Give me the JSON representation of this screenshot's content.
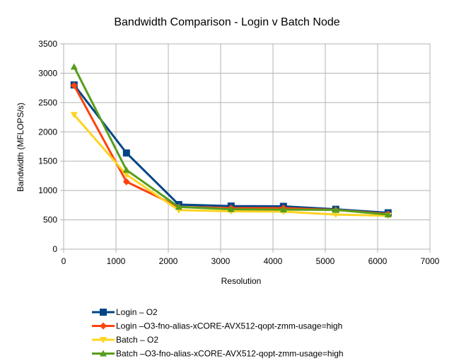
{
  "chart_data": {
    "type": "line",
    "title": "Bandwidth Comparison - Login v Batch Node",
    "xlabel": "Resolution",
    "ylabel": "Bandwidth (MFLOPS/s)",
    "xlim": [
      0,
      7000
    ],
    "ylim": [
      0,
      3500
    ],
    "xticks": [
      0,
      1000,
      2000,
      3000,
      4000,
      5000,
      6000,
      7000
    ],
    "yticks": [
      0,
      500,
      1000,
      1500,
      2000,
      2500,
      3000,
      3500
    ],
    "grid": true,
    "legend_position": "bottom",
    "series": [
      {
        "name": "Login – O2",
        "color": "#004586",
        "marker": "square",
        "x": [
          200,
          1200,
          2200,
          3200,
          4200,
          5200,
          6200
        ],
        "y": [
          2800,
          1640,
          760,
          735,
          730,
          680,
          620
        ]
      },
      {
        "name": "Login –O3-fno-alias-xCORE-AVX512-qopt-zmm-usage=high",
        "color": "#ff420e",
        "marker": "diamond",
        "x": [
          200,
          1200,
          2200,
          3200,
          4200,
          5200,
          6200
        ],
        "y": [
          2790,
          1150,
          720,
          700,
          700,
          670,
          600
        ]
      },
      {
        "name": "Batch – O2",
        "color": "#ffd320",
        "marker": "triangle-down",
        "x": [
          200,
          1200,
          2200,
          3200,
          4200,
          5200,
          6200
        ],
        "y": [
          2290,
          1270,
          665,
          645,
          640,
          590,
          570
        ]
      },
      {
        "name": "Batch –O3-fno-alias-xCORE-AVX512-qopt-zmm-usage=high",
        "color": "#579d1c",
        "marker": "triangle-up",
        "x": [
          200,
          1200,
          2200,
          3200,
          4200,
          5200,
          6200
        ],
        "y": [
          3110,
          1350,
          720,
          680,
          675,
          670,
          590
        ]
      }
    ]
  }
}
